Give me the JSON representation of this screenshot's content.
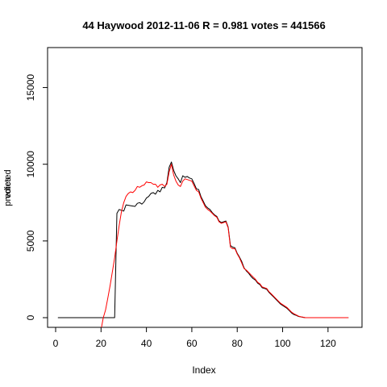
{
  "chart_data": {
    "type": "line",
    "title": "44 Haywood 2012-11-06 R = 0.981 votes = 441566",
    "xlabel": "Index",
    "ylabel_overprint": [
      "votes",
      "predicted"
    ],
    "xlim": [
      0,
      130
    ],
    "ylim": [
      0,
      17500
    ],
    "x_ticks": [
      0,
      20,
      40,
      60,
      80,
      100,
      120
    ],
    "y_ticks": [
      0,
      5000,
      10000,
      15000
    ],
    "grid": false,
    "legend": "none",
    "series": [
      {
        "color": "#000000",
        "points": [
          [
            1,
            0
          ],
          [
            26,
            0
          ],
          [
            27,
            6800
          ],
          [
            28,
            7050
          ],
          [
            29,
            7000
          ],
          [
            30,
            6950
          ],
          [
            31,
            7350
          ],
          [
            33,
            7300
          ],
          [
            35,
            7250
          ],
          [
            36,
            7450
          ],
          [
            37,
            7500
          ],
          [
            38,
            7400
          ],
          [
            39,
            7550
          ],
          [
            40,
            7800
          ],
          [
            41,
            7900
          ],
          [
            42,
            8100
          ],
          [
            43,
            8150
          ],
          [
            44,
            8050
          ],
          [
            45,
            8300
          ],
          [
            46,
            8200
          ],
          [
            47,
            8500
          ],
          [
            48,
            8450
          ],
          [
            49,
            8800
          ],
          [
            50,
            9800
          ],
          [
            51,
            10150
          ],
          [
            52,
            9600
          ],
          [
            53,
            9250
          ],
          [
            54,
            9050
          ],
          [
            55,
            8800
          ],
          [
            56,
            9250
          ],
          [
            57,
            9150
          ],
          [
            58,
            9200
          ],
          [
            59,
            9100
          ],
          [
            60,
            9050
          ],
          [
            61,
            8750
          ],
          [
            62,
            8400
          ],
          [
            63,
            8350
          ],
          [
            64,
            7900
          ],
          [
            65,
            7600
          ],
          [
            66,
            7300
          ],
          [
            67,
            7150
          ],
          [
            68,
            7050
          ],
          [
            69,
            6850
          ],
          [
            70,
            6700
          ],
          [
            71,
            6600
          ],
          [
            72,
            6300
          ],
          [
            73,
            6200
          ],
          [
            74,
            6250
          ],
          [
            75,
            6300
          ],
          [
            76,
            5900
          ],
          [
            77,
            4700
          ],
          [
            78,
            4600
          ],
          [
            79,
            4550
          ],
          [
            80,
            4200
          ],
          [
            81,
            3950
          ],
          [
            82,
            3650
          ],
          [
            83,
            3250
          ],
          [
            84,
            3050
          ],
          [
            85,
            2900
          ],
          [
            86,
            2700
          ],
          [
            87,
            2550
          ],
          [
            88,
            2450
          ],
          [
            89,
            2250
          ],
          [
            90,
            2150
          ],
          [
            91,
            1950
          ],
          [
            92,
            1900
          ],
          [
            93,
            1850
          ],
          [
            94,
            1650
          ],
          [
            95,
            1500
          ],
          [
            96,
            1350
          ],
          [
            97,
            1200
          ],
          [
            98,
            1050
          ],
          [
            99,
            900
          ],
          [
            100,
            800
          ],
          [
            101,
            700
          ],
          [
            102,
            600
          ],
          [
            103,
            450
          ],
          [
            104,
            300
          ],
          [
            105,
            200
          ],
          [
            106,
            150
          ],
          [
            107,
            80
          ],
          [
            108,
            50
          ],
          [
            109,
            20
          ],
          [
            110,
            0
          ],
          [
            129,
            0
          ]
        ]
      },
      {
        "color": "#ff0000",
        "points": [
          [
            20,
            -800
          ],
          [
            21,
            0
          ],
          [
            22,
            500
          ],
          [
            23,
            1300
          ],
          [
            24,
            2100
          ],
          [
            25,
            3000
          ],
          [
            26,
            3900
          ],
          [
            27,
            5000
          ],
          [
            28,
            6000
          ],
          [
            29,
            6900
          ],
          [
            30,
            7500
          ],
          [
            31,
            7900
          ],
          [
            32,
            8100
          ],
          [
            33,
            8200
          ],
          [
            34,
            8150
          ],
          [
            35,
            8300
          ],
          [
            36,
            8550
          ],
          [
            37,
            8500
          ],
          [
            38,
            8600
          ],
          [
            39,
            8650
          ],
          [
            40,
            8850
          ],
          [
            41,
            8800
          ],
          [
            42,
            8800
          ],
          [
            43,
            8700
          ],
          [
            44,
            8700
          ],
          [
            45,
            8500
          ],
          [
            46,
            8650
          ],
          [
            47,
            8700
          ],
          [
            48,
            8550
          ],
          [
            49,
            8700
          ],
          [
            50,
            9500
          ],
          [
            51,
            10000
          ],
          [
            52,
            9300
          ],
          [
            53,
            8900
          ],
          [
            54,
            8650
          ],
          [
            55,
            8550
          ],
          [
            56,
            8900
          ],
          [
            57,
            9050
          ],
          [
            58,
            9000
          ],
          [
            59,
            8950
          ],
          [
            60,
            8900
          ],
          [
            61,
            8600
          ],
          [
            62,
            8300
          ],
          [
            63,
            8200
          ],
          [
            64,
            7800
          ],
          [
            65,
            7500
          ],
          [
            66,
            7200
          ],
          [
            67,
            7050
          ],
          [
            68,
            6950
          ],
          [
            69,
            6800
          ],
          [
            70,
            6650
          ],
          [
            71,
            6550
          ],
          [
            72,
            6250
          ],
          [
            73,
            6150
          ],
          [
            74,
            6200
          ],
          [
            75,
            6250
          ],
          [
            76,
            5850
          ],
          [
            77,
            4600
          ],
          [
            78,
            4500
          ],
          [
            79,
            4500
          ],
          [
            80,
            4150
          ],
          [
            81,
            3900
          ],
          [
            82,
            3550
          ],
          [
            83,
            3200
          ],
          [
            84,
            3100
          ],
          [
            85,
            2950
          ],
          [
            86,
            2800
          ],
          [
            87,
            2650
          ],
          [
            88,
            2500
          ],
          [
            89,
            2300
          ],
          [
            90,
            2200
          ],
          [
            91,
            2000
          ],
          [
            92,
            1950
          ],
          [
            93,
            1900
          ],
          [
            94,
            1700
          ],
          [
            95,
            1550
          ],
          [
            96,
            1400
          ],
          [
            97,
            1250
          ],
          [
            98,
            1100
          ],
          [
            99,
            950
          ],
          [
            100,
            850
          ],
          [
            101,
            750
          ],
          [
            102,
            650
          ],
          [
            103,
            500
          ],
          [
            104,
            350
          ],
          [
            105,
            250
          ],
          [
            106,
            180
          ],
          [
            107,
            100
          ],
          [
            108,
            60
          ],
          [
            109,
            30
          ],
          [
            110,
            0
          ],
          [
            129,
            0
          ]
        ]
      }
    ]
  }
}
